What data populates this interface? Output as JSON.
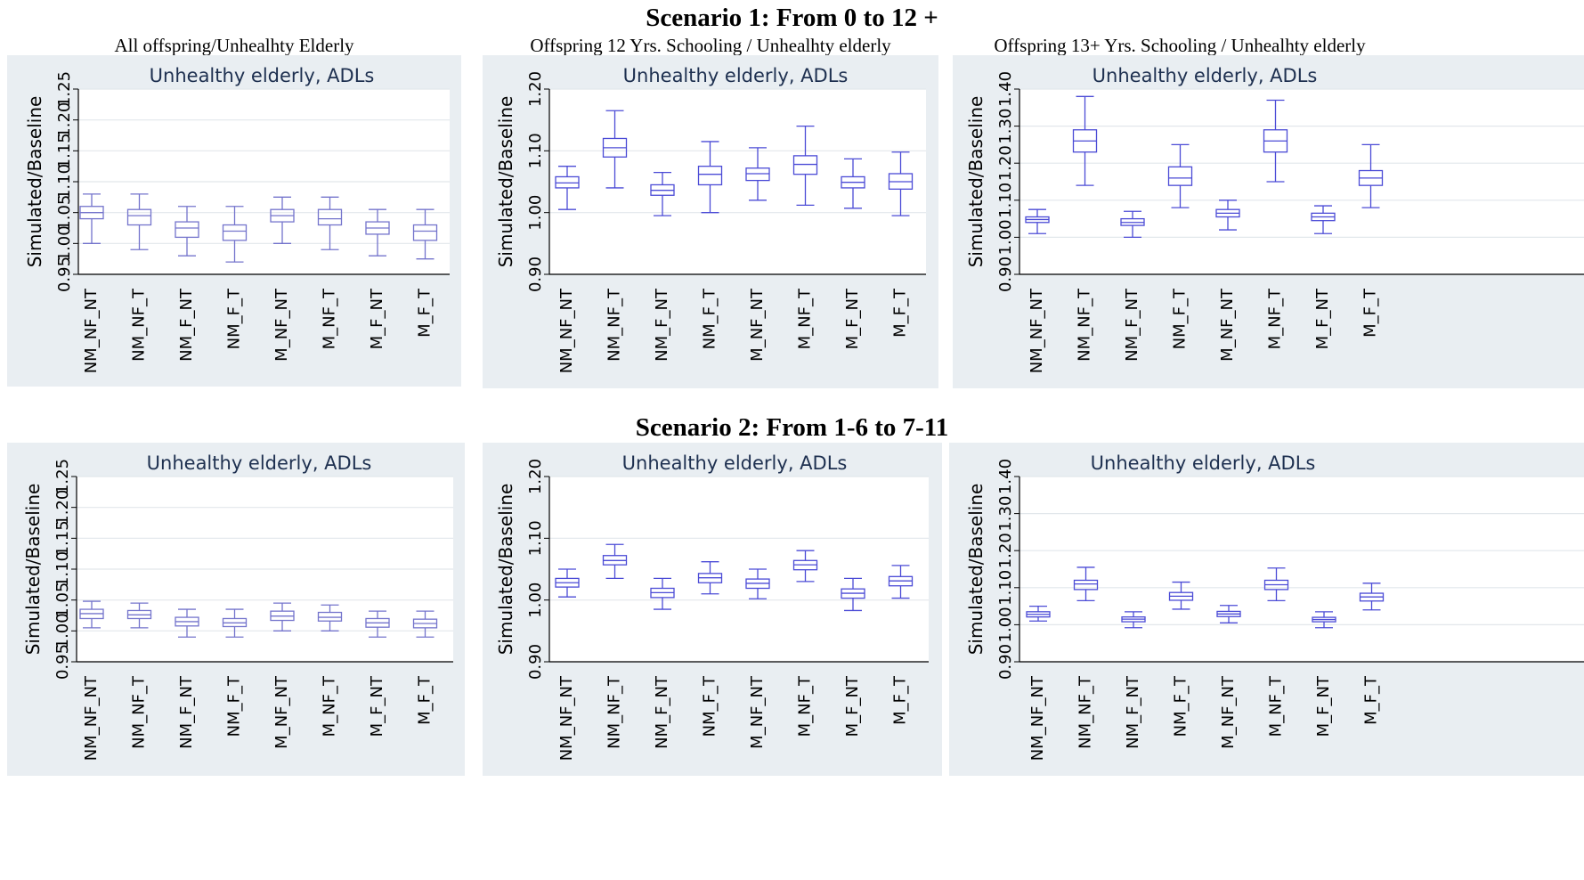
{
  "headings": {
    "scenario1": "Scenario 1: From 0 to 12 +",
    "scenario2": "Scenario 2: From 1-6 to 7-11",
    "col1": "All offspring/Unhealhty Elderly",
    "col2": "Offspring 12 Yrs. Schooling / Unhealhty elderly",
    "col3": "Offspring 13+ Yrs. Schooling / Unhealhty elderly"
  },
  "colors": {
    "box": "#4b4bd6",
    "box_light": "#7474cc",
    "panel_bg": "#e9eef2",
    "plot_bg": "#ffffff",
    "grid": "#e2e7eb"
  },
  "chart_data": [
    {
      "type": "box",
      "title": "Unhealthy elderly, ADLs",
      "ylabel": "Simulated/Baseline",
      "ylim": [
        0.95,
        1.25
      ],
      "yticks": [
        "0.95",
        "1.00",
        "1.05",
        "1.10",
        "1.15",
        "1.20",
        "1.25"
      ],
      "grid": true,
      "categories": [
        "NM_NF_NT",
        "NM_NF_T",
        "NM_F_NT",
        "NM_F_T",
        "M_NF_NT",
        "M_NF_T",
        "M_F_NT",
        "M_F_T"
      ],
      "boxes": [
        {
          "min": 1.0,
          "q1": 1.04,
          "median": 1.05,
          "q3": 1.06,
          "max": 1.08
        },
        {
          "min": 0.99,
          "q1": 1.03,
          "median": 1.045,
          "q3": 1.055,
          "max": 1.08
        },
        {
          "min": 0.98,
          "q1": 1.01,
          "median": 1.025,
          "q3": 1.035,
          "max": 1.06
        },
        {
          "min": 0.97,
          "q1": 1.005,
          "median": 1.02,
          "q3": 1.03,
          "max": 1.06
        },
        {
          "min": 1.0,
          "q1": 1.035,
          "median": 1.045,
          "q3": 1.055,
          "max": 1.075
        },
        {
          "min": 0.99,
          "q1": 1.03,
          "median": 1.04,
          "q3": 1.055,
          "max": 1.075
        },
        {
          "min": 0.98,
          "q1": 1.015,
          "median": 1.025,
          "q3": 1.035,
          "max": 1.055
        },
        {
          "min": 0.975,
          "q1": 1.005,
          "median": 1.02,
          "q3": 1.03,
          "max": 1.055
        }
      ]
    },
    {
      "type": "box",
      "title": "Unhealthy elderly, ADLs",
      "ylabel": "Simulated/Baseline",
      "ylim": [
        0.9,
        1.2
      ],
      "yticks": [
        "0.90",
        "1.00",
        "1.10",
        "1.20"
      ],
      "grid": true,
      "categories": [
        "NM_NF_NT",
        "NM_NF_T",
        "NM_F_NT",
        "NM_F_T",
        "M_NF_NT",
        "M_NF_T",
        "M_F_NT",
        "M_F_T"
      ],
      "boxes": [
        {
          "min": 1.005,
          "q1": 1.04,
          "median": 1.048,
          "q3": 1.058,
          "max": 1.075
        },
        {
          "min": 1.04,
          "q1": 1.09,
          "median": 1.105,
          "q3": 1.12,
          "max": 1.165
        },
        {
          "min": 0.995,
          "q1": 1.028,
          "median": 1.036,
          "q3": 1.045,
          "max": 1.065
        },
        {
          "min": 1.0,
          "q1": 1.045,
          "median": 1.062,
          "q3": 1.075,
          "max": 1.115
        },
        {
          "min": 1.02,
          "q1": 1.052,
          "median": 1.063,
          "q3": 1.072,
          "max": 1.105
        },
        {
          "min": 1.012,
          "q1": 1.062,
          "median": 1.078,
          "q3": 1.092,
          "max": 1.14
        },
        {
          "min": 1.007,
          "q1": 1.04,
          "median": 1.049,
          "q3": 1.058,
          "max": 1.087
        },
        {
          "min": 0.995,
          "q1": 1.038,
          "median": 1.05,
          "q3": 1.063,
          "max": 1.098
        }
      ]
    },
    {
      "type": "box",
      "title": "Unhealthy elderly, ADLs",
      "ylabel": "Simulated/Baseline",
      "ylim": [
        0.9,
        1.4
      ],
      "yticks": [
        "0.90",
        "1.00",
        "1.10",
        "1.20",
        "1.30",
        "1.40"
      ],
      "grid": true,
      "categories": [
        "NM_NF_NT",
        "NM_NF_T",
        "NM_F_NT",
        "NM_F_T",
        "M_NF_NT",
        "M_NF_T",
        "M_F_NT",
        "M_F_T"
      ],
      "boxes": [
        {
          "min": 1.01,
          "q1": 1.04,
          "median": 1.048,
          "q3": 1.055,
          "max": 1.075
        },
        {
          "min": 1.14,
          "q1": 1.23,
          "median": 1.26,
          "q3": 1.29,
          "max": 1.38
        },
        {
          "min": 1.0,
          "q1": 1.032,
          "median": 1.04,
          "q3": 1.05,
          "max": 1.07
        },
        {
          "min": 1.08,
          "q1": 1.14,
          "median": 1.16,
          "q3": 1.19,
          "max": 1.25
        },
        {
          "min": 1.02,
          "q1": 1.055,
          "median": 1.065,
          "q3": 1.075,
          "max": 1.1
        },
        {
          "min": 1.15,
          "q1": 1.23,
          "median": 1.26,
          "q3": 1.29,
          "max": 1.37
        },
        {
          "min": 1.01,
          "q1": 1.045,
          "median": 1.055,
          "q3": 1.065,
          "max": 1.085
        },
        {
          "min": 1.08,
          "q1": 1.14,
          "median": 1.16,
          "q3": 1.18,
          "max": 1.25
        }
      ]
    },
    {
      "type": "box",
      "title": "Unhealthy elderly, ADLs",
      "ylabel": "Simulated/Baseline",
      "ylim": [
        0.95,
        1.25
      ],
      "yticks": [
        "0.95",
        "1.00",
        "1.05",
        "1.10",
        "1.15",
        "1.20",
        "1.25"
      ],
      "grid": true,
      "categories": [
        "NM_NF_NT",
        "NM_NF_T",
        "NM_F_NT",
        "NM_F_T",
        "M_NF_NT",
        "M_NF_T",
        "M_F_NT",
        "M_F_T"
      ],
      "boxes": [
        {
          "min": 1.005,
          "q1": 1.02,
          "median": 1.028,
          "q3": 1.035,
          "max": 1.048
        },
        {
          "min": 1.005,
          "q1": 1.02,
          "median": 1.026,
          "q3": 1.033,
          "max": 1.045
        },
        {
          "min": 0.99,
          "q1": 1.008,
          "median": 1.015,
          "q3": 1.022,
          "max": 1.035
        },
        {
          "min": 0.99,
          "q1": 1.007,
          "median": 1.013,
          "q3": 1.02,
          "max": 1.035
        },
        {
          "min": 1.0,
          "q1": 1.017,
          "median": 1.024,
          "q3": 1.032,
          "max": 1.045
        },
        {
          "min": 1.0,
          "q1": 1.016,
          "median": 1.022,
          "q3": 1.03,
          "max": 1.042
        },
        {
          "min": 0.99,
          "q1": 1.006,
          "median": 1.013,
          "q3": 1.02,
          "max": 1.032
        },
        {
          "min": 0.99,
          "q1": 1.005,
          "median": 1.012,
          "q3": 1.019,
          "max": 1.032
        }
      ]
    },
    {
      "type": "box",
      "title": "Unhealthy elderly, ADLs",
      "ylabel": "Simulated/Baseline",
      "ylim": [
        0.9,
        1.2
      ],
      "yticks": [
        "0.90",
        "1.00",
        "1.10",
        "1.20"
      ],
      "grid": true,
      "categories": [
        "NM_NF_NT",
        "NM_NF_T",
        "NM_F_NT",
        "NM_F_T",
        "M_NF_NT",
        "M_NF_T",
        "M_F_NT",
        "M_F_T"
      ],
      "boxes": [
        {
          "min": 1.005,
          "q1": 1.021,
          "median": 1.028,
          "q3": 1.035,
          "max": 1.05
        },
        {
          "min": 1.035,
          "q1": 1.057,
          "median": 1.064,
          "q3": 1.072,
          "max": 1.09
        },
        {
          "min": 0.985,
          "q1": 1.004,
          "median": 1.012,
          "q3": 1.019,
          "max": 1.035
        },
        {
          "min": 1.01,
          "q1": 1.028,
          "median": 1.036,
          "q3": 1.043,
          "max": 1.062
        },
        {
          "min": 1.002,
          "q1": 1.019,
          "median": 1.027,
          "q3": 1.034,
          "max": 1.05
        },
        {
          "min": 1.03,
          "q1": 1.049,
          "median": 1.057,
          "q3": 1.064,
          "max": 1.08
        },
        {
          "min": 0.983,
          "q1": 1.003,
          "median": 1.011,
          "q3": 1.018,
          "max": 1.035
        },
        {
          "min": 1.003,
          "q1": 1.023,
          "median": 1.031,
          "q3": 1.038,
          "max": 1.056
        }
      ]
    },
    {
      "type": "box",
      "title": "Unhealthy elderly, ADLs",
      "ylabel": "Simulated/Baseline",
      "ylim": [
        0.9,
        1.4
      ],
      "yticks": [
        "0.90",
        "1.00",
        "1.10",
        "1.20",
        "1.30",
        "1.40"
      ],
      "grid": true,
      "categories": [
        "NM_NF_NT",
        "NM_NF_T",
        "NM_F_NT",
        "NM_F_T",
        "M_NF_NT",
        "M_NF_T",
        "M_F_NT",
        "M_F_T"
      ],
      "boxes": [
        {
          "min": 1.01,
          "q1": 1.021,
          "median": 1.028,
          "q3": 1.035,
          "max": 1.05
        },
        {
          "min": 1.065,
          "q1": 1.095,
          "median": 1.11,
          "q3": 1.12,
          "max": 1.155
        },
        {
          "min": 0.992,
          "q1": 1.008,
          "median": 1.015,
          "q3": 1.021,
          "max": 1.035
        },
        {
          "min": 1.042,
          "q1": 1.066,
          "median": 1.077,
          "q3": 1.087,
          "max": 1.115
        },
        {
          "min": 1.005,
          "q1": 1.022,
          "median": 1.029,
          "q3": 1.036,
          "max": 1.052
        },
        {
          "min": 1.065,
          "q1": 1.095,
          "median": 1.108,
          "q3": 1.12,
          "max": 1.153
        },
        {
          "min": 0.992,
          "q1": 1.008,
          "median": 1.014,
          "q3": 1.02,
          "max": 1.035
        },
        {
          "min": 1.04,
          "q1": 1.064,
          "median": 1.075,
          "q3": 1.085,
          "max": 1.112
        }
      ]
    }
  ]
}
